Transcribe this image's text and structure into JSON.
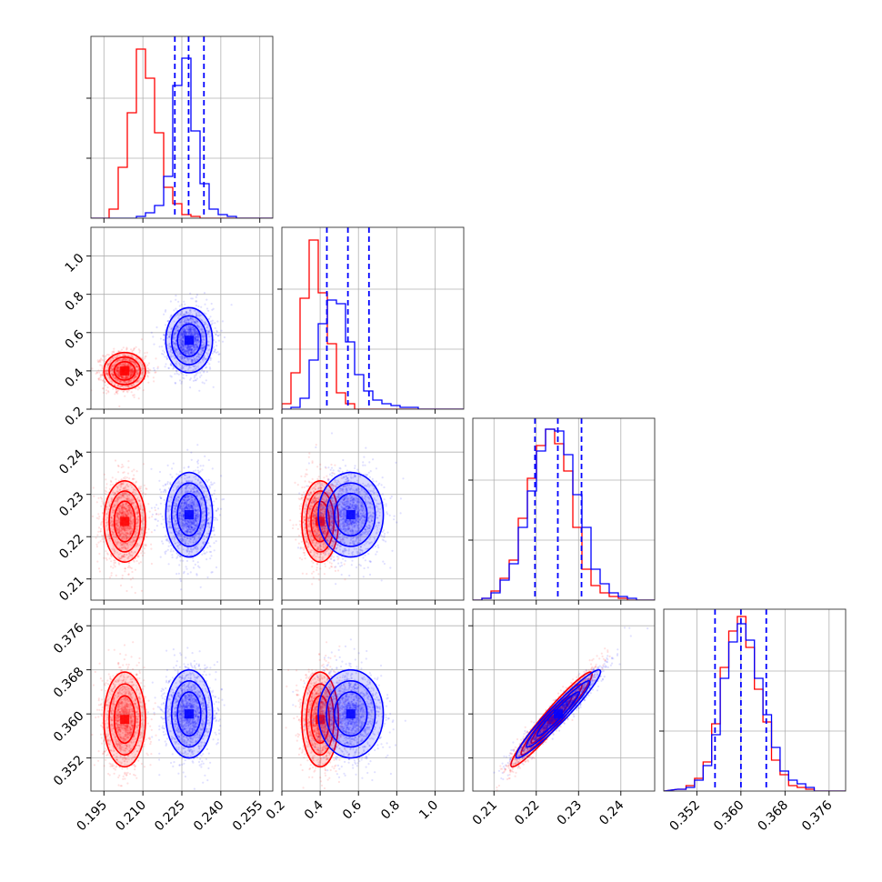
{
  "chart_data": {
    "type": "corner",
    "params": [
      "p0",
      "p1",
      "p2",
      "p3"
    ],
    "param_labels": [
      "",
      "",
      "",
      ""
    ],
    "grid": true,
    "ranges": [
      [
        0.19,
        0.26
      ],
      [
        0.2,
        1.15
      ],
      [
        0.205,
        0.248
      ],
      [
        0.346,
        0.379
      ]
    ],
    "ticks": [
      [
        "0.195",
        "0.210",
        "0.225",
        "0.240",
        "0.255"
      ],
      [
        "0.2",
        "0.4",
        "0.6",
        "0.8",
        "1.0"
      ],
      [
        "0.21",
        "0.22",
        "0.23",
        "0.24"
      ],
      [
        "0.352",
        "0.360",
        "0.368",
        "0.376"
      ]
    ],
    "tick_values": [
      [
        0.195,
        0.21,
        0.225,
        0.24,
        0.255
      ],
      [
        0.2,
        0.4,
        0.6,
        0.8,
        1.0
      ],
      [
        0.21,
        0.22,
        0.23,
        0.24
      ],
      [
        0.352,
        0.36,
        0.368,
        0.376
      ]
    ],
    "quantile_lines_color": "#0000ff",
    "quantiles": [
      [
        0.2223,
        0.2276,
        0.2335
      ],
      [
        0.435,
        0.545,
        0.655
      ],
      [
        0.2197,
        0.2251,
        0.2307
      ],
      [
        0.3553,
        0.36,
        0.3646
      ]
    ],
    "series": [
      {
        "color": "#ff0000",
        "means": [
          0.203,
          0.4,
          0.2236,
          0.359
        ],
        "sigmas": [
          0.004,
          0.048,
          0.0048,
          0.0043
        ],
        "histograms": [
          {
            "edges_start": 0.19,
            "bin_width": 0.0035,
            "counts": [
              0,
              0,
              0.05,
              0.28,
              0.58,
              0.93,
              0.77,
              0.47,
              0.17,
              0.08,
              0.02,
              0.01,
              0,
              0,
              0,
              0,
              0,
              0,
              0,
              0
            ]
          },
          {
            "edges_start": 0.2,
            "bin_width": 0.0475,
            "counts": [
              0.03,
              0.2,
              0.61,
              0.93,
              0.64,
              0.36,
              0.09,
              0.03,
              0,
              0,
              0,
              0,
              0,
              0,
              0,
              0,
              0,
              0,
              0,
              0
            ]
          },
          {
            "edges_start": 0.205,
            "bin_width": 0.00215,
            "counts": [
              0,
              0.01,
              0.05,
              0.12,
              0.22,
              0.45,
              0.67,
              0.85,
              0.94,
              0.86,
              0.71,
              0.4,
              0.17,
              0.08,
              0.04,
              0.02,
              0.01,
              0,
              0,
              0
            ]
          },
          {
            "edges_start": 0.3485,
            "bin_width": 0.00155,
            "counts": [
              0.01,
              0.03,
              0.07,
              0.16,
              0.37,
              0.68,
              0.88,
              0.96,
              0.79,
              0.56,
              0.38,
              0.17,
              0.09,
              0.03,
              0.02,
              0.01,
              0,
              0,
              0,
              0
            ]
          }
        ]
      },
      {
        "color": "#0000ff",
        "means": [
          0.2278,
          0.56,
          0.2252,
          0.36
        ],
        "sigmas": [
          0.0045,
          0.085,
          0.005,
          0.004
        ],
        "histograms": [
          {
            "edges_start": 0.19,
            "bin_width": 0.0035,
            "counts": [
              0,
              0,
              0,
              0,
              0,
              0.01,
              0.03,
              0.07,
              0.23,
              0.73,
              0.88,
              0.48,
              0.19,
              0.05,
              0.02,
              0.01,
              0,
              0,
              0,
              0
            ]
          },
          {
            "edges_start": 0.2,
            "bin_width": 0.0475,
            "counts": [
              0,
              0.01,
              0.06,
              0.27,
              0.47,
              0.6,
              0.58,
              0.37,
              0.19,
              0.1,
              0.05,
              0.03,
              0.02,
              0.01,
              0.01,
              0,
              0,
              0,
              0,
              0
            ]
          },
          {
            "edges_start": 0.205,
            "bin_width": 0.00215,
            "counts": [
              0,
              0.01,
              0.04,
              0.11,
              0.2,
              0.4,
              0.6,
              0.82,
              0.94,
              0.93,
              0.8,
              0.58,
              0.4,
              0.17,
              0.09,
              0.04,
              0.02,
              0.01,
              0,
              0
            ]
          },
          {
            "edges_start": 0.3485,
            "bin_width": 0.00155,
            "counts": [
              0.01,
              0.02,
              0.06,
              0.14,
              0.31,
              0.62,
              0.82,
              0.92,
              0.83,
              0.62,
              0.42,
              0.24,
              0.11,
              0.06,
              0.04,
              0.02,
              0,
              0,
              0,
              0
            ]
          }
        ]
      }
    ],
    "correlations": {
      "2-3": 0.96,
      "0-1": 0.0,
      "0-2": 0.0,
      "0-3": 0.0,
      "1-2": 0.0,
      "1-3": 0.0
    },
    "contour_levels_sigma": [
      0.5,
      1.0,
      1.5,
      2.0
    ],
    "scatter_points_per_panel": 1400
  }
}
